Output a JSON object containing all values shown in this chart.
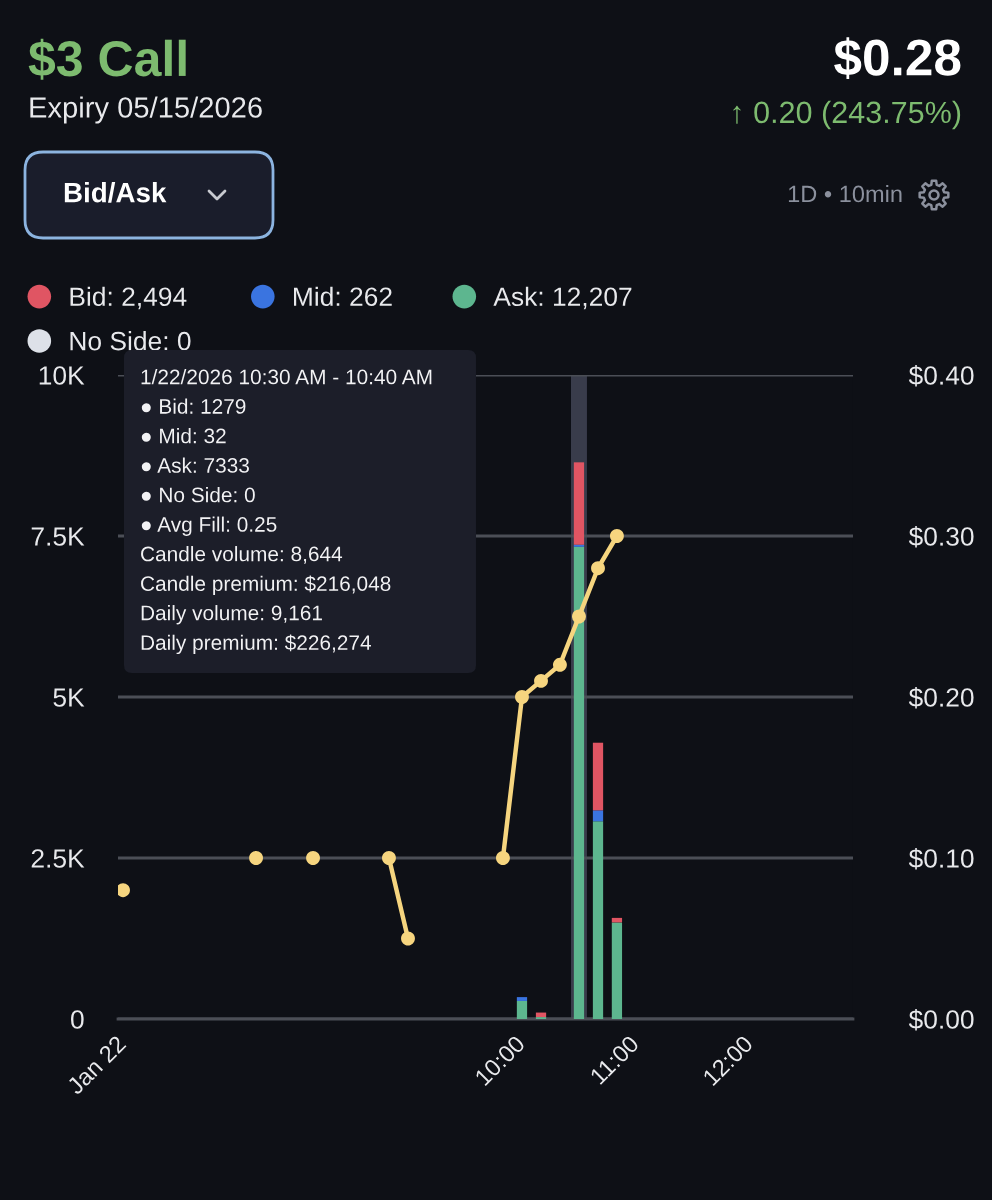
{
  "chart_data": {
    "type": "bar",
    "title": "$3 Call",
    "subtitle": "Expiry 05/15/2026",
    "annotations": [
      "$0.28",
      "↑ 0.20 (243.75%)",
      "Bid/Ask",
      "1D • 10min",
      "1/22/2026 10:30 AM - 10:40 AM",
      "● Bid: 1279",
      "● Mid: 32",
      "● Ask: 7333",
      "● No Side: 0",
      "● Avg Fill: 0.25",
      "Candle volume: 8,644",
      "Candle premium: $216,048",
      "Daily volume: 9,161",
      "Daily premium: $226,274"
    ],
    "x": [
      10.0,
      10.167,
      10.5,
      10.667,
      10.833
    ],
    "xlim": [
      6.456,
      12.904
    ],
    "xticks": [
      {
        "value": 6.5,
        "label": "Jan 22"
      },
      {
        "value": 10,
        "label": "10:00"
      },
      {
        "value": 11,
        "label": "11:00"
      },
      {
        "value": 12,
        "label": "12:00"
      }
    ],
    "ylim": [
      0,
      10000
    ],
    "yticks": [
      0,
      {
        "value": 2500,
        "label": "2.5K"
      },
      {
        "value": 5000,
        "label": "5K"
      },
      {
        "value": 7500,
        "label": "7.5K"
      },
      {
        "value": 10000,
        "label": "10K"
      }
    ],
    "y2lim": [
      0,
      0.4
    ],
    "y2ticks": [
      {
        "value": 0,
        "label": "$0.00"
      },
      {
        "value": 0.1,
        "label": "$0.10"
      },
      {
        "value": 0.2,
        "label": "$0.20"
      },
      {
        "value": 0.3,
        "label": "$0.30"
      },
      {
        "value": 0.4,
        "label": "$0.40"
      }
    ],
    "stacked": true,
    "series": [
      {
        "name": "No Side: 0",
        "color": "#dde1e8",
        "values": [
          0,
          0,
          0,
          0,
          0
        ]
      },
      {
        "name": "Ask: 12,207",
        "color": "#5db68f",
        "values": [
          280,
          30,
          7333,
          3070,
          1500
        ]
      },
      {
        "name": "Mid: 262",
        "color": "#3a74e0",
        "values": [
          60,
          null,
          32,
          170,
          null
        ]
      },
      {
        "name": "Bid: 2,494",
        "color": "#e05563",
        "values": [
          null,
          70,
          1279,
          1050,
          70
        ]
      },
      {
        "type": "line",
        "axis": "y2",
        "color": "#f6d57f",
        "x": [
          6.5,
          6.667,
          7.667,
          7.833,
          8.167,
          8.333,
          8.833,
          9.0,
          9.167,
          9.833,
          10.0,
          10.167,
          10.333,
          10.5,
          10.667,
          10.833
        ],
        "values": [
          0.08,
          null,
          0.1,
          null,
          0.1,
          null,
          0.1,
          0.05,
          null,
          0.1,
          0.2,
          0.21,
          0.22,
          0.25,
          0.28,
          0.3
        ]
      }
    ],
    "bands": [
      {
        "axis": "x",
        "from": 10.43,
        "to": 10.57,
        "color": "#393c4b"
      }
    ],
    "marker": "circle",
    "grid": "y",
    "legend": "top left"
  }
}
